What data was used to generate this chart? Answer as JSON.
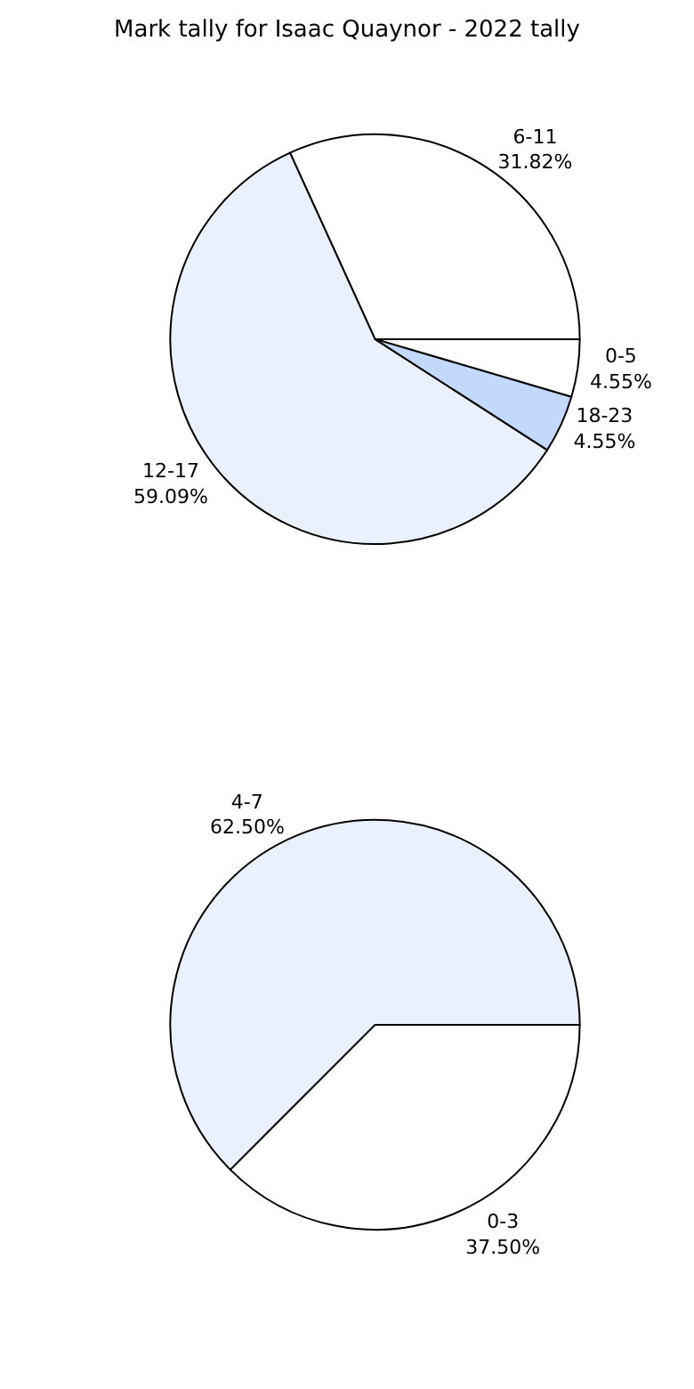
{
  "chart_data": [
    {
      "type": "pie",
      "title": "Mark tally for Isaac Quaynor - 2022 tally",
      "categories": [
        "0-5",
        "6-11",
        "12-17",
        "18-23"
      ],
      "values": [
        4.55,
        31.82,
        59.09,
        4.55
      ],
      "value_labels": [
        "4.55%",
        "31.82%",
        "59.09%",
        "4.55%"
      ],
      "colors": [
        "#ffffff",
        "#ffffff",
        "#eaf1fd",
        "#c2d9fb"
      ],
      "legend": false
    },
    {
      "type": "pie",
      "categories": [
        "0-3",
        "4-7"
      ],
      "values": [
        37.5,
        62.5
      ],
      "value_labels": [
        "37.50%",
        "62.50%"
      ],
      "colors": [
        "#ffffff",
        "#eaf1fd"
      ],
      "legend": false
    }
  ]
}
